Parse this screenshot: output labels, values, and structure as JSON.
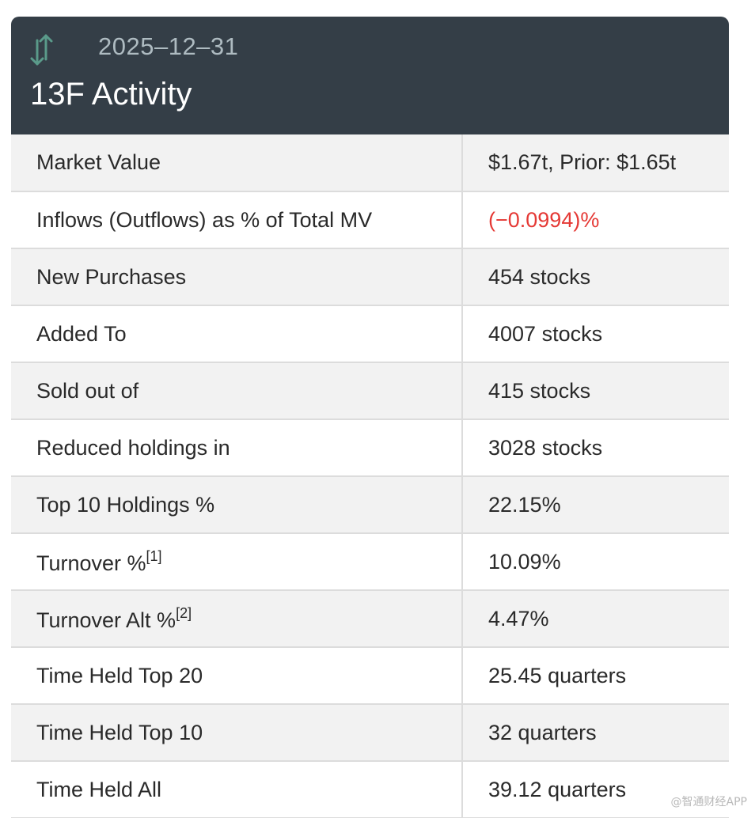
{
  "header": {
    "date": "2025–12–31",
    "title": "13F Activity",
    "icon": "up-down-arrows-icon",
    "icon_color": "#5a9a8a",
    "background": "#343e47"
  },
  "rows": [
    {
      "label": "Market Value",
      "value": "$1.67t, Prior: $1.65t",
      "footnote": ""
    },
    {
      "label": "Inflows (Outflows) as % of Total MV",
      "value": "(−0.0994)%",
      "footnote": "",
      "negative": true,
      "value_color": "#e53935"
    },
    {
      "label": "New Purchases",
      "value": "454 stocks",
      "footnote": ""
    },
    {
      "label": "Added To",
      "value": "4007 stocks",
      "footnote": ""
    },
    {
      "label": "Sold out of",
      "value": "415 stocks",
      "footnote": ""
    },
    {
      "label": "Reduced holdings in",
      "value": "3028 stocks",
      "footnote": ""
    },
    {
      "label": "Top 10 Holdings %",
      "value": "22.15%",
      "footnote": ""
    },
    {
      "label": "Turnover %",
      "value": "10.09%",
      "footnote": "[1]"
    },
    {
      "label": "Turnover Alt %",
      "value": "4.47%",
      "footnote": "[2]"
    },
    {
      "label": "Time Held Top 20",
      "value": "25.45 quarters",
      "footnote": ""
    },
    {
      "label": "Time Held Top 10",
      "value": "32 quarters",
      "footnote": ""
    },
    {
      "label": "Time Held All",
      "value": "39.12 quarters",
      "footnote": ""
    }
  ],
  "watermark": "@智通财经APP"
}
